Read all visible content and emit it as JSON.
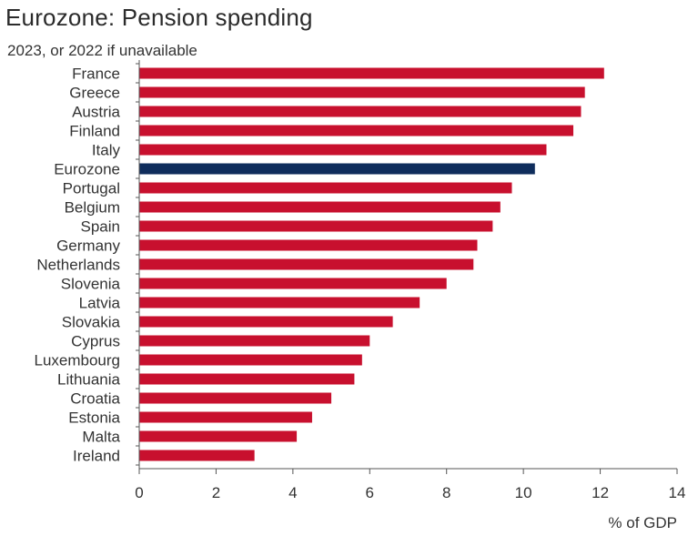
{
  "chart_data": {
    "type": "bar",
    "orientation": "horizontal",
    "title": "Eurozone: Pension spending",
    "subtitle": "2023, or 2022 if unavailable",
    "xlabel": "% of GDP",
    "ylabel": "",
    "xlim": [
      0,
      14
    ],
    "xticks": [
      0,
      2,
      4,
      6,
      8,
      10,
      12,
      14
    ],
    "grid": false,
    "legend": "none",
    "categories": [
      "France",
      "Greece",
      "Austria",
      "Finland",
      "Italy",
      "Eurozone",
      "Portugal",
      "Belgium",
      "Spain",
      "Germany",
      "Netherlands",
      "Slovenia",
      "Latvia",
      "Slovakia",
      "Cyprus",
      "Luxembourg",
      "Lithuania",
      "Croatia",
      "Estonia",
      "Malta",
      "Ireland"
    ],
    "values": [
      12.1,
      11.6,
      11.5,
      11.3,
      10.6,
      10.3,
      9.7,
      9.4,
      9.2,
      8.8,
      8.7,
      8.0,
      7.3,
      6.6,
      6.0,
      5.8,
      5.6,
      5.0,
      4.5,
      4.1,
      3.0
    ],
    "highlight": "Eurozone",
    "colors": {
      "bar": "#c8102e",
      "highlight": "#0f2d5c",
      "axis": "#555555",
      "text": "#333333"
    }
  }
}
